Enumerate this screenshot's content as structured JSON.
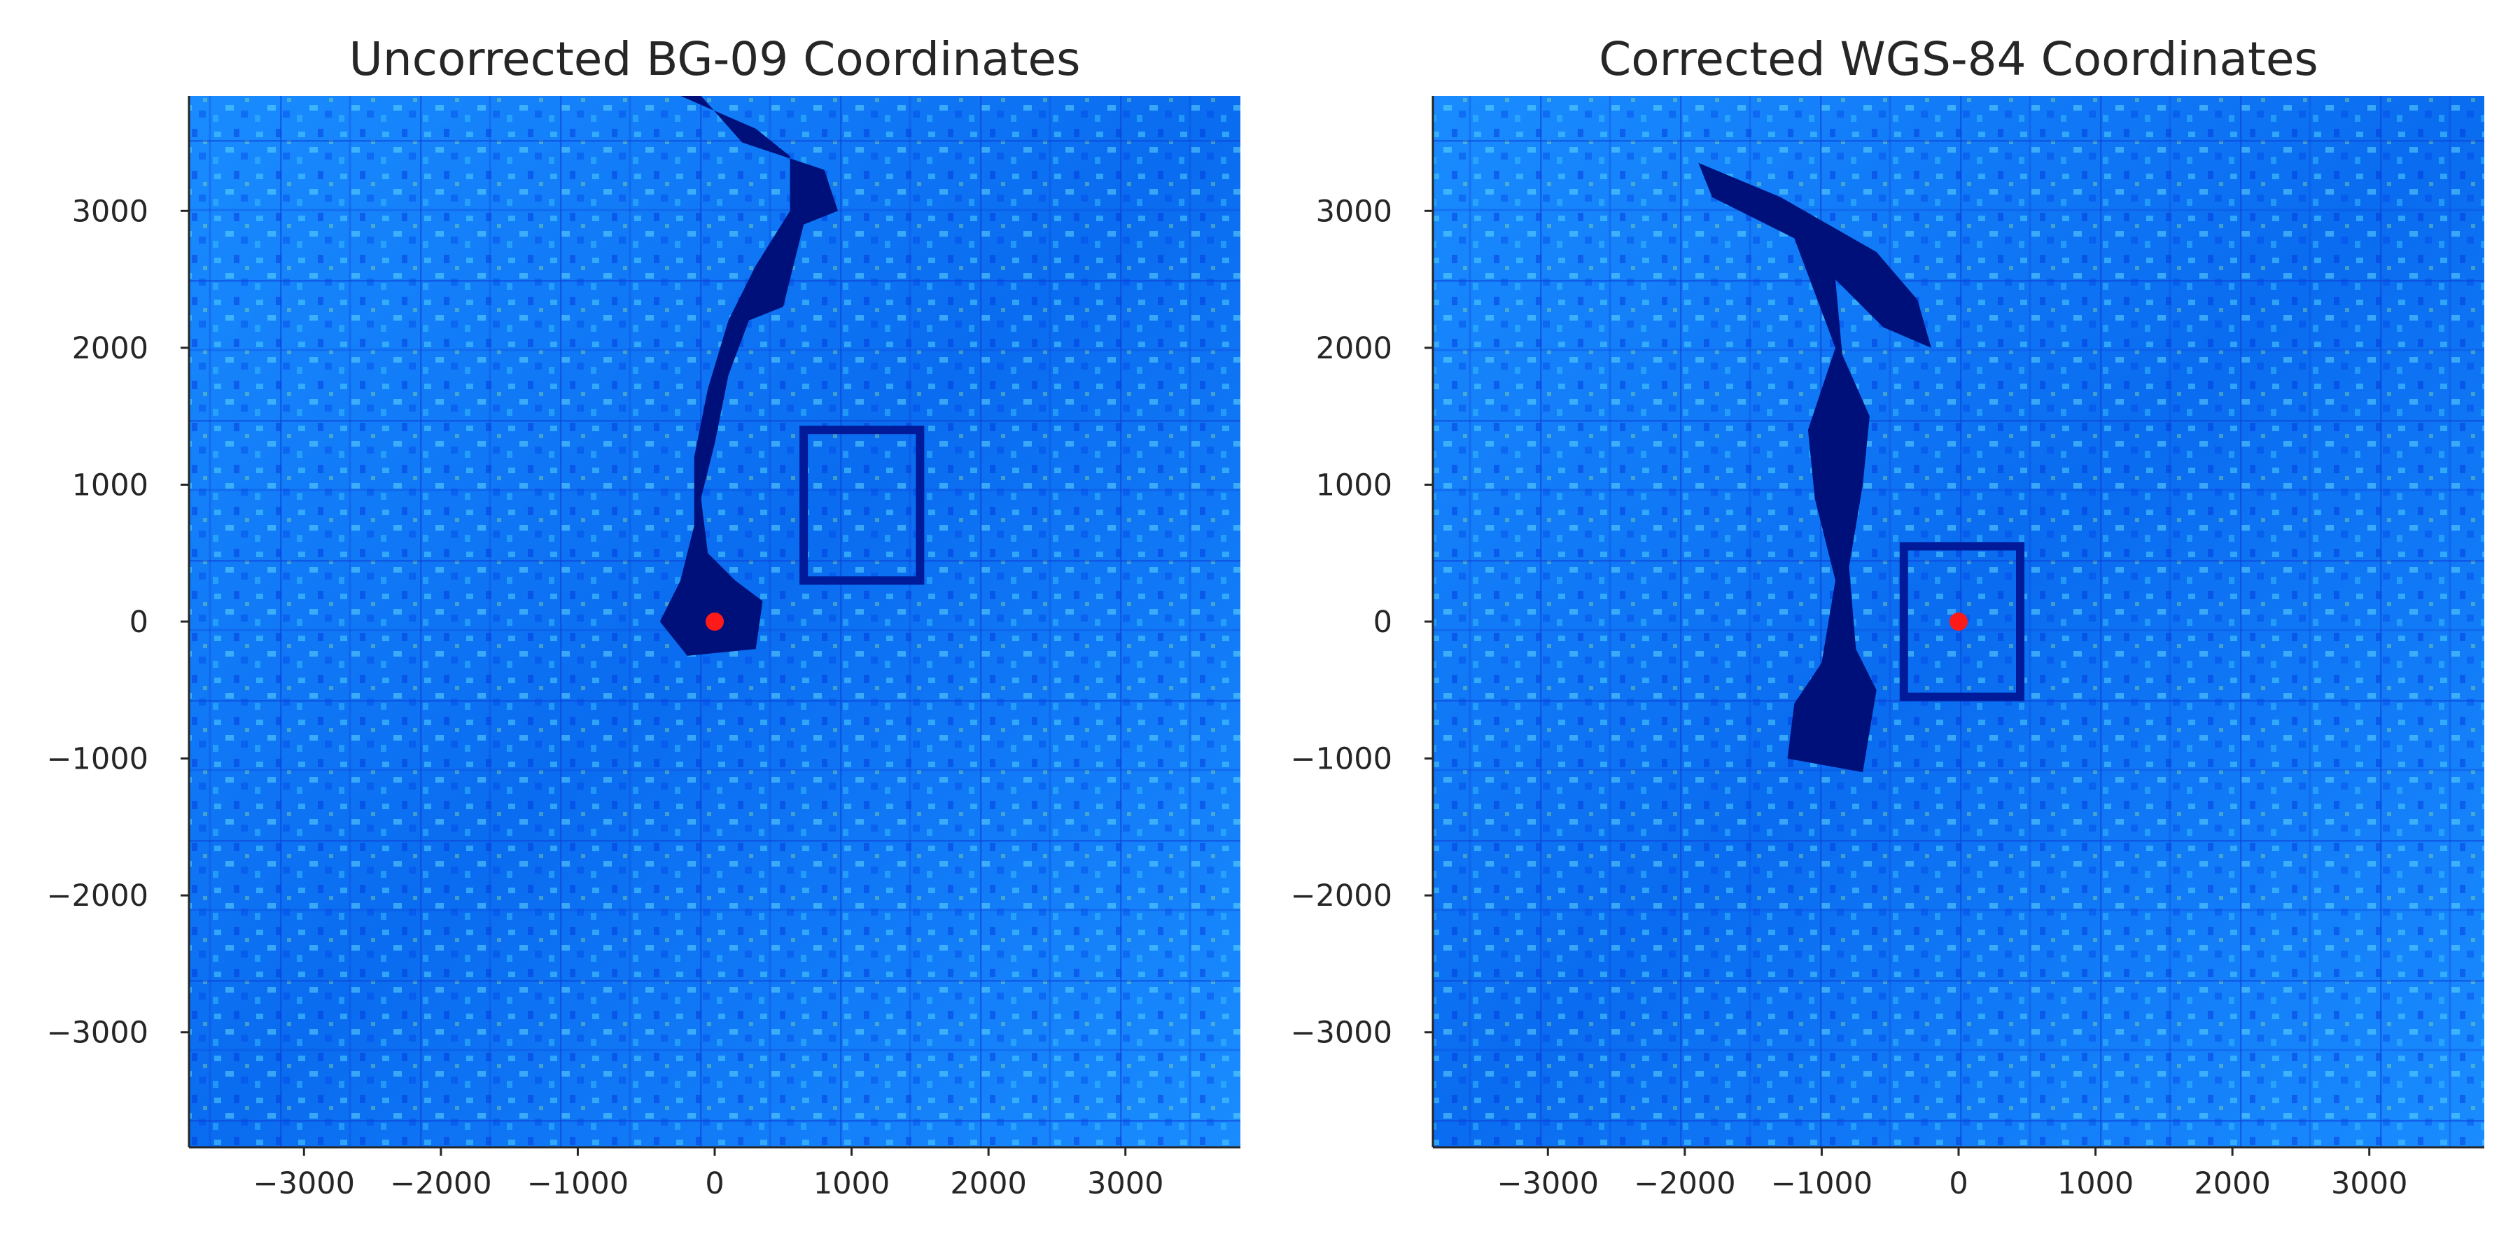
{
  "chart_data": [
    {
      "type": "heatmap",
      "title": "Uncorrected BG-09 Coordinates",
      "xlabel": "",
      "ylabel": "",
      "xlim": [
        -3840,
        3840
      ],
      "ylim": [
        -3840,
        3840
      ],
      "xticks": [
        -3000,
        -2000,
        -1000,
        0,
        1000,
        2000,
        3000
      ],
      "yticks": [
        3000,
        2000,
        1000,
        0,
        -1000,
        -2000,
        -3000
      ],
      "xtick_labels": [
        "−3000",
        "−2000",
        "−1000",
        "0",
        "1000",
        "2000",
        "3000"
      ],
      "ytick_labels": [
        "3000",
        "2000",
        "1000",
        "0",
        "−1000",
        "−2000",
        "−3000"
      ],
      "colormap": "jet",
      "grid": false,
      "marker": {
        "x": 0,
        "y": 0,
        "color": "#ff1a1a"
      },
      "lake": [
        [
          -100,
          3840
        ],
        [
          200,
          3500
        ],
        [
          800,
          3300
        ],
        [
          900,
          3000
        ],
        [
          650,
          2900
        ],
        [
          550,
          2500
        ],
        [
          500,
          2300
        ],
        [
          250,
          2200
        ],
        [
          100,
          1800
        ],
        [
          0,
          1300
        ],
        [
          -100,
          900
        ],
        [
          -50,
          500
        ],
        [
          150,
          300
        ],
        [
          350,
          150
        ],
        [
          300,
          -200
        ],
        [
          -200,
          -250
        ],
        [
          -400,
          0
        ],
        [
          -250,
          300
        ],
        [
          -150,
          700
        ],
        [
          -150,
          1200
        ],
        [
          -50,
          1700
        ],
        [
          100,
          2200
        ],
        [
          300,
          2600
        ],
        [
          550,
          3000
        ],
        [
          550,
          3400
        ],
        [
          300,
          3600
        ],
        [
          -250,
          3840
        ]
      ],
      "palace_box": [
        650,
        1400,
        1500,
        300
      ]
    },
    {
      "type": "heatmap",
      "title": "Corrected WGS-84 Coordinates",
      "xlabel": "",
      "ylabel": "",
      "xlim": [
        -3840,
        3840
      ],
      "ylim": [
        -3840,
        3840
      ],
      "xticks": [
        -3000,
        -2000,
        -1000,
        0,
        1000,
        2000,
        3000
      ],
      "yticks": [
        3000,
        2000,
        1000,
        0,
        -1000,
        -2000,
        -3000
      ],
      "xtick_labels": [
        "−3000",
        "−2000",
        "−1000",
        "0",
        "1000",
        "2000",
        "3000"
      ],
      "ytick_labels": [
        "3000",
        "2000",
        "1000",
        "0",
        "−1000",
        "−2000",
        "−3000"
      ],
      "colormap": "jet",
      "grid": false,
      "marker": {
        "x": 0,
        "y": 0,
        "color": "#ff1a1a"
      },
      "lake": [
        [
          -1900,
          3350
        ],
        [
          -1300,
          3100
        ],
        [
          -600,
          2700
        ],
        [
          -300,
          2350
        ],
        [
          -200,
          2000
        ],
        [
          -550,
          2150
        ],
        [
          -900,
          2500
        ],
        [
          -850,
          1950
        ],
        [
          -650,
          1500
        ],
        [
          -700,
          1000
        ],
        [
          -800,
          400
        ],
        [
          -750,
          -200
        ],
        [
          -600,
          -500
        ],
        [
          -700,
          -1100
        ],
        [
          -1250,
          -1000
        ],
        [
          -1200,
          -600
        ],
        [
          -1000,
          -300
        ],
        [
          -900,
          300
        ],
        [
          -1050,
          900
        ],
        [
          -1100,
          1400
        ],
        [
          -900,
          2000
        ],
        [
          -1200,
          2800
        ],
        [
          -1800,
          3100
        ]
      ],
      "palace_box": [
        -400,
        550,
        450,
        -550
      ]
    }
  ]
}
